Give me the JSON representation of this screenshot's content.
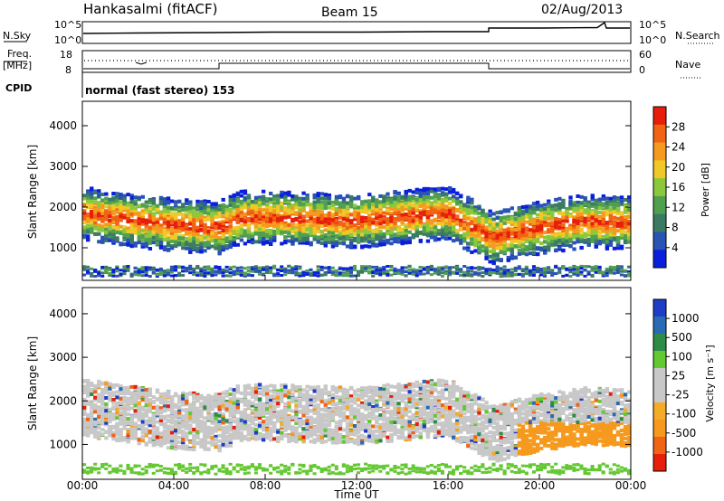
{
  "header": {
    "station": "Hankasalmi (fitACF)",
    "beam": "Beam 15",
    "date": "02/Aug/2013"
  },
  "params": {
    "nsky_label": "N.Sky",
    "nsearch_label": "N.Search",
    "freq_label_line1": "Freq.",
    "freq_label_line2": "[MHz]",
    "nave_label": "Nave",
    "cpid_label": "CPID",
    "cpid_text": "normal (fast stereo) 153",
    "nsky_ticks": [
      "10^5",
      "10^0"
    ],
    "nsearch_ticks": [
      "10^5",
      "10^0"
    ],
    "freq_ticks": [
      "18",
      "8"
    ],
    "nave_ticks": [
      "60",
      "0"
    ]
  },
  "colors": {
    "power_scale": [
      "#0a1fdc",
      "#2a53b4",
      "#3c7a64",
      "#50a050",
      "#8cc83c",
      "#f0c828",
      "#f59a1e",
      "#f06414",
      "#e61e0a"
    ],
    "velocity_scale": [
      "#e61e0a",
      "#f06414",
      "#f59a1e",
      "#f5aa28",
      "#c8c8c8",
      "#c8c8c8",
      "#64c832",
      "#2d8c46",
      "#2a6ab4",
      "#1e3cc8"
    ]
  },
  "chart_data": [
    {
      "type": "heatmap",
      "name": "power",
      "ylabel": "Slant Range [km]",
      "ylim": [
        200,
        4600
      ],
      "y_ticks": [
        "1000",
        "2000",
        "3000",
        "4000"
      ],
      "y_tick_values": [
        1000,
        2000,
        3000,
        4000
      ],
      "x_ticks": [
        "00:00",
        "04:00",
        "08:00",
        "12:00",
        "16:00",
        "20:00",
        "00:00"
      ],
      "x_tick_hours": [
        0,
        4,
        8,
        12,
        16,
        20,
        24
      ],
      "colorbar_label": "Power [dB]",
      "colorbar_ticks": [
        "28",
        "24",
        "20",
        "16",
        "12",
        "8",
        "4"
      ],
      "colorbar_range": [
        0,
        32
      ],
      "band_center_km": [
        [
          0,
          1850
        ],
        [
          2,
          1700
        ],
        [
          4,
          1550
        ],
        [
          6,
          1500
        ],
        [
          7,
          1750
        ],
        [
          10,
          1700
        ],
        [
          12,
          1650
        ],
        [
          14,
          1750
        ],
        [
          16,
          1850
        ],
        [
          18,
          1250
        ],
        [
          20,
          1500
        ],
        [
          22,
          1650
        ],
        [
          24,
          1600
        ]
      ]
    },
    {
      "type": "heatmap",
      "name": "velocity",
      "ylabel": "Slant Range [km]",
      "ylim": [
        200,
        4600
      ],
      "y_ticks": [
        "1000",
        "2000",
        "3000",
        "4000"
      ],
      "y_tick_values": [
        1000,
        2000,
        3000,
        4000
      ],
      "x_ticks": [
        "00:00",
        "04:00",
        "08:00",
        "12:00",
        "16:00",
        "20:00",
        "00:00"
      ],
      "x_tick_hours": [
        0,
        4,
        8,
        12,
        16,
        20,
        24
      ],
      "xlabel": "Time UT",
      "colorbar_label": "Velocity [m s⁻¹]",
      "colorbar_ticks": [
        "1000",
        "500",
        "100",
        "25",
        "-25",
        "-100",
        "-500",
        "-1000"
      ]
    }
  ]
}
